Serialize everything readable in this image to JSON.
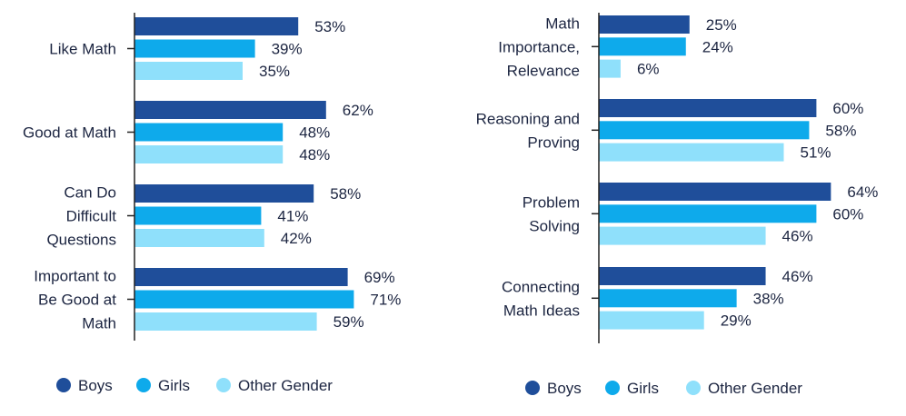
{
  "colors": {
    "boys": "#1f4e9a",
    "girls": "#0eaaeb",
    "other": "#8fe0fb",
    "text": "#1c2541",
    "axis": "#222222"
  },
  "chart_data": [
    {
      "type": "bar",
      "orientation": "horizontal",
      "title": "",
      "xlabel": "",
      "ylabel": "",
      "xlim": [
        0,
        100
      ],
      "grid": false,
      "legend_position": "bottom",
      "categories": [
        [
          "Like Math"
        ],
        [
          "Good at Math"
        ],
        [
          "Can Do",
          "Difficult",
          "Questions"
        ],
        [
          "Important to",
          "Be Good at",
          "Math"
        ]
      ],
      "series": [
        {
          "name": "Boys",
          "values": [
            53,
            62,
            58,
            69
          ],
          "labels": [
            "53%",
            "62%",
            "58%",
            "69%"
          ]
        },
        {
          "name": "Girls",
          "values": [
            39,
            48,
            41,
            71
          ],
          "labels": [
            "39%",
            "48%",
            "41%",
            "71%"
          ]
        },
        {
          "name": "Other Gender",
          "values": [
            35,
            48,
            42,
            59
          ],
          "labels": [
            "35%",
            "48%",
            "42%",
            "59%"
          ]
        }
      ]
    },
    {
      "type": "bar",
      "orientation": "horizontal",
      "title": "",
      "xlabel": "",
      "ylabel": "",
      "xlim": [
        0,
        100
      ],
      "grid": false,
      "legend_position": "bottom",
      "categories": [
        [
          "Math",
          "Importance,",
          "Relevance"
        ],
        [
          "Reasoning and",
          "Proving"
        ],
        [
          "Problem",
          "Solving"
        ],
        [
          "Connecting",
          "Math Ideas"
        ]
      ],
      "series": [
        {
          "name": "Boys",
          "values": [
            25,
            60,
            64,
            46
          ],
          "labels": [
            "25%",
            "60%",
            "64%",
            "46%"
          ]
        },
        {
          "name": "Girls",
          "values": [
            24,
            58,
            60,
            38
          ],
          "labels": [
            "24%",
            "58%",
            "60%",
            "38%"
          ]
        },
        {
          "name": "Other Gender",
          "values": [
            6,
            51,
            46,
            29
          ],
          "labels": [
            "6%",
            "51%",
            "46%",
            "29%"
          ]
        }
      ]
    }
  ]
}
